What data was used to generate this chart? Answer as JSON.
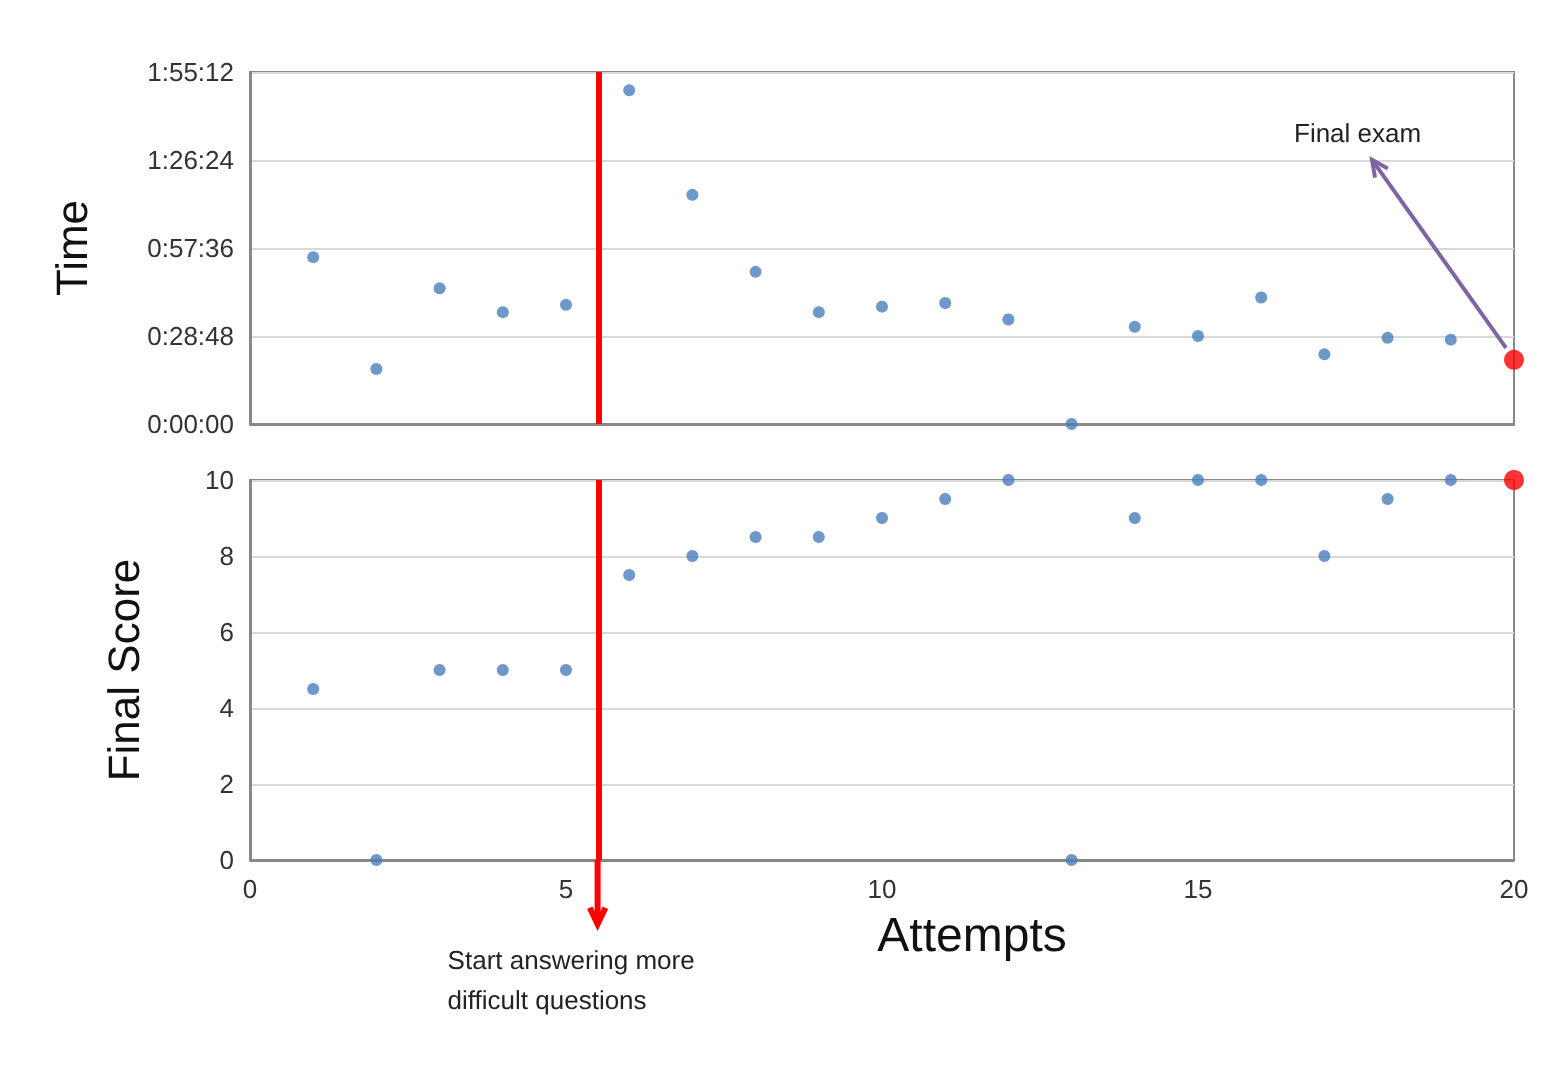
{
  "chart_data": [
    {
      "type": "scatter",
      "ylabel": "Time",
      "series": [
        {
          "color": "#4a7ebb",
          "x": [
            1,
            2,
            3,
            4,
            5,
            6,
            7,
            8,
            9,
            10,
            11,
            12,
            13,
            14,
            15,
            16,
            17,
            18,
            19
          ],
          "values": [
            0.91,
            0.3,
            0.74,
            0.61,
            0.65,
            1.82,
            1.25,
            0.83,
            0.61,
            0.64,
            0.66,
            0.57,
            0,
            0.53,
            0.48,
            0.69,
            0.38,
            0.47,
            0.46
          ]
        },
        {
          "color": "#ff0000",
          "x": [
            20
          ],
          "values": [
            0.35
          ]
        }
      ],
      "xlim": [
        0,
        20
      ],
      "xticks": [
        0,
        5,
        10,
        15,
        20
      ],
      "ylim": [
        0,
        1.92
      ],
      "yticks": [
        {
          "value": 0,
          "label": "0:00:00"
        },
        {
          "value": 0.48,
          "label": "0:28:48"
        },
        {
          "value": 0.96,
          "label": "0:57:36"
        },
        {
          "value": 1.44,
          "label": "1:26:24"
        },
        {
          "value": 1.92,
          "label": "1:55:12"
        }
      ],
      "grid": "y",
      "marker": "circle",
      "tick_labels": "y",
      "ref_lines": [
        {
          "axis": "x",
          "value": 5.5,
          "color": "#ff0000"
        }
      ],
      "annotations": [
        {
          "text": "Final exam",
          "x": 20,
          "y": 0.35
        }
      ]
    },
    {
      "type": "scatter",
      "ylabel": "Final Score",
      "xlabel": "Attempts",
      "series": [
        {
          "color": "#4a7ebb",
          "x": [
            1,
            2,
            3,
            4,
            5,
            6,
            7,
            8,
            9,
            10,
            11,
            12,
            13,
            14,
            15,
            16,
            17,
            18,
            19
          ],
          "values": [
            4.5,
            0,
            5,
            5,
            5,
            7.5,
            8,
            8.5,
            8.5,
            9,
            9.5,
            10,
            0,
            9,
            10,
            10,
            8,
            9.5,
            10
          ]
        },
        {
          "color": "#ff0000",
          "x": [
            20
          ],
          "values": [
            10
          ]
        }
      ],
      "xlim": [
        0,
        20
      ],
      "xticks": [
        0,
        5,
        10,
        15,
        20
      ],
      "ylim": [
        0,
        10
      ],
      "yticks": [
        0,
        2,
        4,
        6,
        8,
        10
      ],
      "grid": "y",
      "marker": "circle",
      "ref_lines": [
        {
          "axis": "x",
          "value": 5.5,
          "color": "#ff0000",
          "label": "Start answering more difficult questions"
        }
      ]
    }
  ]
}
